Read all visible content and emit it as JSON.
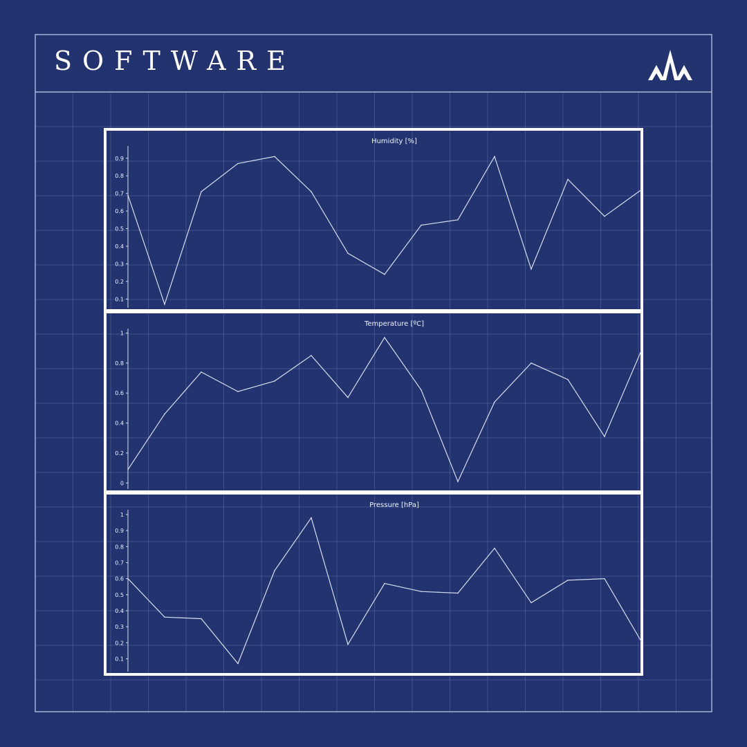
{
  "header": {
    "title": "SOFTWARE",
    "logo_icon": "mountain-logo-icon"
  },
  "colors": {
    "background": "#23336f",
    "grid_line": "#5a6aa6",
    "frame": "#ffffff",
    "series_line": "#d8def0"
  },
  "chart_data": [
    {
      "type": "line",
      "title": "Humidity [%]",
      "x": [
        0,
        1,
        2,
        3,
        4,
        5,
        6,
        7,
        8,
        9,
        10,
        11,
        12,
        13,
        14
      ],
      "values": [
        0.69,
        0.07,
        0.71,
        0.87,
        0.91,
        0.71,
        0.36,
        0.24,
        0.52,
        0.55,
        0.91,
        0.27,
        0.78,
        0.57,
        0.72
      ],
      "ylim": [
        0.05,
        0.97
      ],
      "yticks": [
        0.1,
        0.2,
        0.3,
        0.4,
        0.5,
        0.6,
        0.7,
        0.8,
        0.9
      ],
      "ytick_labels": [
        "0.1",
        "0.2",
        "0.3",
        "0.4",
        "0.5",
        "0.6",
        "0.7",
        "0.8",
        "0.9"
      ],
      "grid": false
    },
    {
      "type": "line",
      "title": "Temperature [ºC]",
      "x": [
        0,
        1,
        2,
        3,
        4,
        5,
        6,
        7,
        8,
        9,
        10,
        11,
        12,
        13,
        14
      ],
      "values": [
        0.09,
        0.46,
        0.74,
        0.61,
        0.68,
        0.85,
        0.57,
        0.97,
        0.62,
        0.01,
        0.54,
        0.8,
        0.69,
        0.31,
        0.88
      ],
      "ylim": [
        -0.04,
        1.03
      ],
      "yticks": [
        0,
        0.2,
        0.4,
        0.6,
        0.8,
        1
      ],
      "ytick_labels": [
        "0",
        "0.2",
        "0.4",
        "0.6",
        "0.8",
        "1"
      ],
      "grid": false
    },
    {
      "type": "line",
      "title": "Pressure [hPa]",
      "x": [
        0,
        1,
        2,
        3,
        4,
        5,
        6,
        7,
        8,
        9,
        10,
        11,
        12,
        13,
        14
      ],
      "values": [
        0.6,
        0.36,
        0.35,
        0.07,
        0.65,
        0.98,
        0.19,
        0.57,
        0.52,
        0.51,
        0.79,
        0.45,
        0.59,
        0.6,
        0.21
      ],
      "ylim": [
        0.02,
        1.03
      ],
      "yticks": [
        0.1,
        0.2,
        0.3,
        0.4,
        0.5,
        0.6,
        0.7,
        0.8,
        0.9,
        1
      ],
      "ytick_labels": [
        "0.1",
        "0.2",
        "0.3",
        "0.4",
        "0.5",
        "0.6",
        "0.7",
        "0.8",
        "0.9",
        "1"
      ],
      "grid": false
    }
  ]
}
